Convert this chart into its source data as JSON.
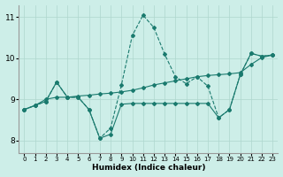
{
  "xlabel": "Humidex (Indice chaleur)",
  "xlim": [
    -0.5,
    23.5
  ],
  "ylim": [
    7.7,
    11.3
  ],
  "yticks": [
    8,
    9,
    10,
    11
  ],
  "xticks": [
    0,
    1,
    2,
    3,
    4,
    5,
    6,
    7,
    8,
    9,
    10,
    11,
    12,
    13,
    14,
    15,
    16,
    17,
    18,
    19,
    20,
    21,
    22,
    23
  ],
  "bg_color": "#cdeee8",
  "grid_color": "#aed6ce",
  "line_color": "#1a7a6e",
  "line1_x": [
    0,
    1,
    2,
    3,
    4,
    5,
    6,
    7,
    8,
    9,
    10,
    11,
    12,
    13,
    14,
    15,
    16,
    17,
    18,
    19,
    20,
    21,
    22,
    23
  ],
  "line1_y": [
    8.75,
    8.85,
    8.95,
    9.42,
    9.05,
    9.05,
    8.75,
    8.05,
    8.3,
    9.35,
    10.55,
    11.05,
    10.75,
    10.1,
    9.55,
    9.38,
    9.55,
    9.32,
    8.55,
    8.75,
    9.6,
    10.12,
    10.05,
    10.08
  ],
  "line2_x": [
    0,
    1,
    2,
    3,
    4,
    5,
    6,
    7,
    8,
    9,
    10,
    11,
    12,
    13,
    14,
    15,
    16,
    17,
    18,
    19,
    20,
    21,
    22,
    23
  ],
  "line2_y": [
    8.75,
    8.85,
    9.0,
    9.05,
    9.05,
    9.08,
    9.1,
    9.13,
    9.15,
    9.18,
    9.22,
    9.28,
    9.35,
    9.4,
    9.45,
    9.5,
    9.55,
    9.58,
    9.6,
    9.62,
    9.65,
    9.85,
    10.02,
    10.08
  ],
  "line3_x": [
    0,
    1,
    2,
    3,
    4,
    5,
    6,
    7,
    8,
    9,
    10,
    11,
    12,
    13,
    14,
    15,
    16,
    17,
    18,
    19,
    20,
    21,
    22,
    23
  ],
  "line3_y": [
    8.75,
    8.85,
    8.95,
    9.42,
    9.05,
    9.05,
    8.75,
    8.05,
    8.15,
    8.88,
    8.9,
    8.9,
    8.9,
    8.9,
    8.9,
    8.9,
    8.9,
    8.9,
    8.55,
    8.75,
    9.6,
    10.12,
    10.05,
    10.08
  ]
}
